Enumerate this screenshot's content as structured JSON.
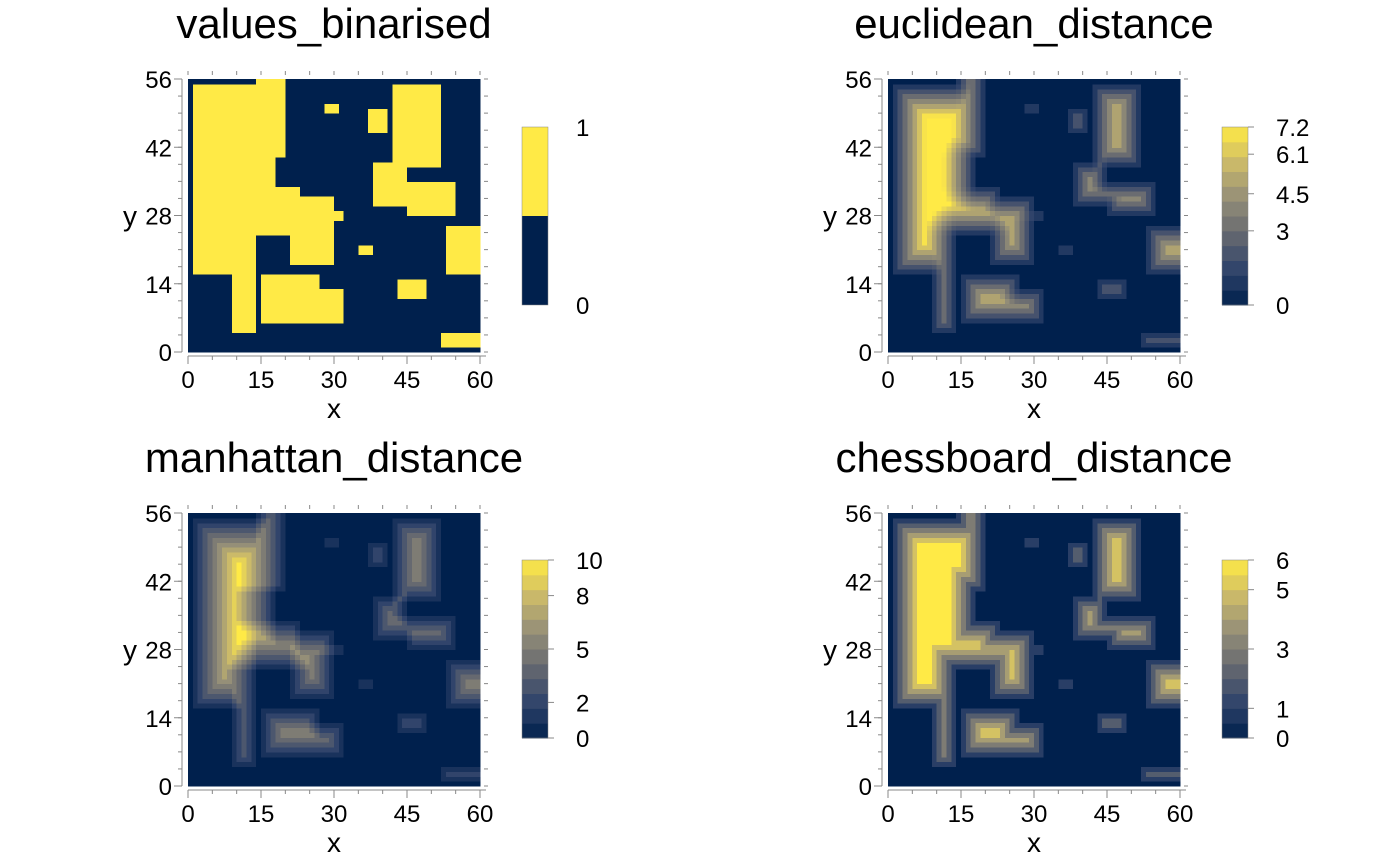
{
  "chart_data": [
    {
      "type": "heatmap",
      "title": "values_binarised",
      "xlabel": "x",
      "ylabel": "y",
      "xlim": [
        0,
        60
      ],
      "ylim": [
        0,
        56
      ],
      "xticks": [
        "0",
        "15",
        "30",
        "45",
        "60"
      ],
      "yticks": [
        "0",
        "14",
        "28",
        "42",
        "56"
      ],
      "grid_size": [
        60,
        56
      ],
      "legend": {
        "type": "discrete",
        "position": "right",
        "levels": [
          {
            "label": "0",
            "color": "#00204d"
          },
          {
            "label": "1",
            "color": "#ffea46"
          }
        ],
        "tick_labels": [
          "0",
          "1"
        ]
      },
      "value_max": 1
    },
    {
      "type": "heatmap",
      "title": "euclidean_distance",
      "xlabel": "x",
      "ylabel": "y",
      "xlim": [
        0,
        60
      ],
      "ylim": [
        0,
        56
      ],
      "xticks": [
        "0",
        "15",
        "30",
        "45",
        "60"
      ],
      "yticks": [
        "0",
        "14",
        "28",
        "42",
        "56"
      ],
      "grid_size": [
        60,
        56
      ],
      "legend": {
        "type": "continuous",
        "position": "right",
        "range": [
          0,
          7.2
        ],
        "tick_labels": [
          "0",
          "3",
          "4.5",
          "6.1",
          "7.2"
        ]
      },
      "value_max": 7.2
    },
    {
      "type": "heatmap",
      "title": "manhattan_distance",
      "xlabel": "x",
      "ylabel": "y",
      "xlim": [
        0,
        60
      ],
      "ylim": [
        0,
        56
      ],
      "xticks": [
        "0",
        "15",
        "30",
        "45",
        "60"
      ],
      "yticks": [
        "0",
        "14",
        "28",
        "42",
        "56"
      ],
      "grid_size": [
        60,
        56
      ],
      "legend": {
        "type": "continuous",
        "position": "right",
        "range": [
          0,
          10
        ],
        "tick_labels": [
          "0",
          "2",
          "5",
          "8",
          "10"
        ]
      },
      "value_max": 10
    },
    {
      "type": "heatmap",
      "title": "chessboard_distance",
      "xlabel": "x",
      "ylabel": "y",
      "xlim": [
        0,
        60
      ],
      "ylim": [
        0,
        56
      ],
      "xticks": [
        "0",
        "15",
        "30",
        "45",
        "60"
      ],
      "yticks": [
        "0",
        "14",
        "28",
        "42",
        "56"
      ],
      "grid_size": [
        60,
        56
      ],
      "legend": {
        "type": "continuous",
        "position": "right",
        "range": [
          0,
          6
        ],
        "tick_labels": [
          "0",
          "1",
          "3",
          "5",
          "6"
        ]
      },
      "value_max": 6
    }
  ],
  "colors": {
    "palette": [
      "#00204d",
      "#31446b",
      "#666970",
      "#958f78",
      "#cbba69",
      "#ffea46"
    ],
    "axis": "#888888"
  }
}
